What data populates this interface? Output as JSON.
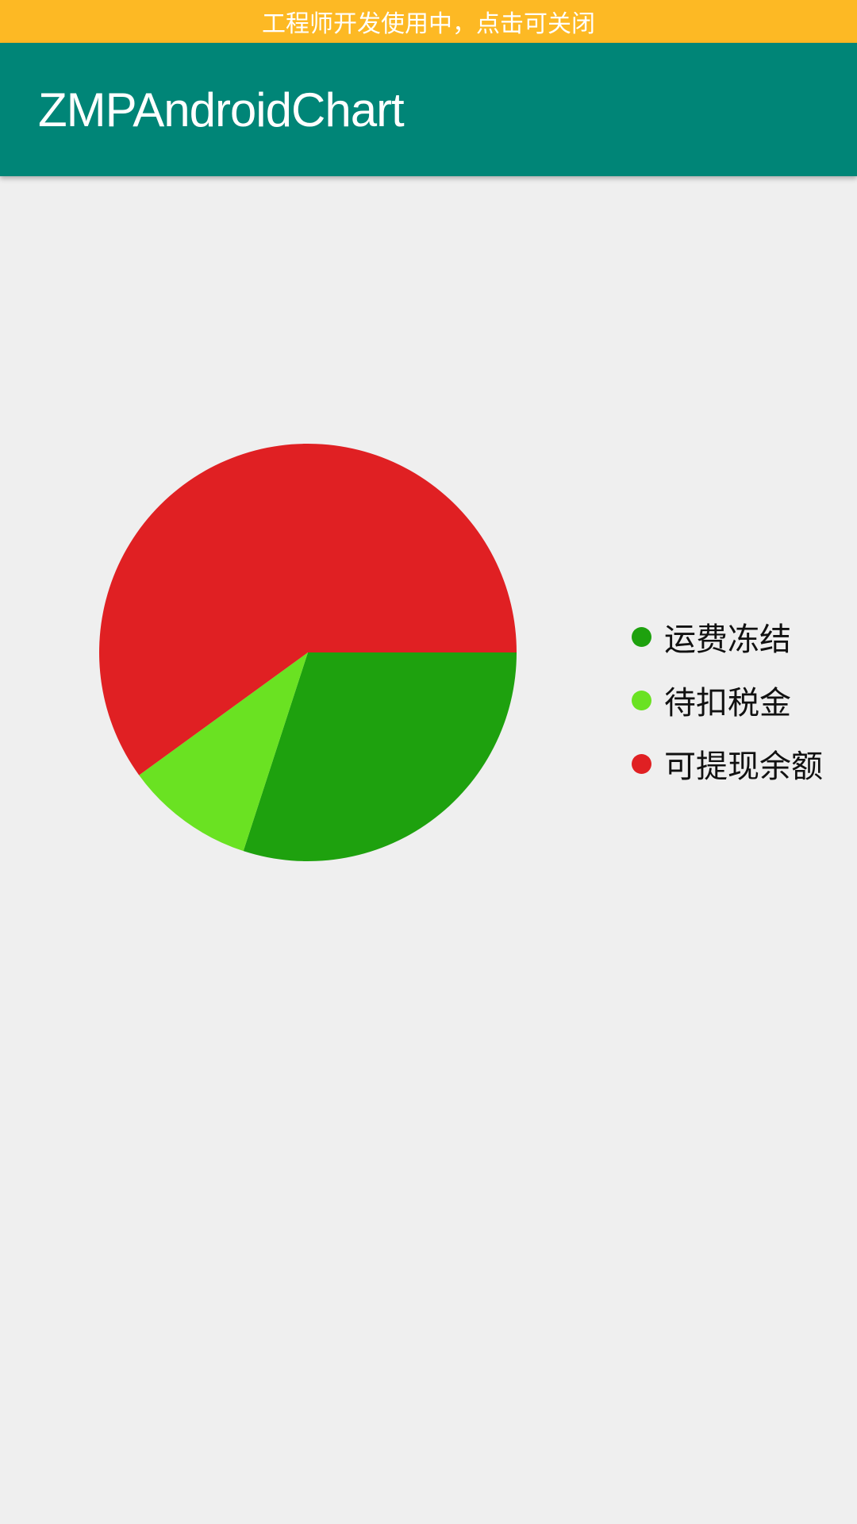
{
  "dev_banner": {
    "text": "工程师开发使用中，点击可关闭",
    "color": "#fdb924"
  },
  "app_bar": {
    "title": "ZMPAndroidChart",
    "color": "#008577"
  },
  "chart_data": {
    "type": "pie",
    "categories": [
      "运费冻结",
      "待扣税金",
      "可提现余额"
    ],
    "values": [
      30,
      10,
      60
    ],
    "colors": [
      "#1ea10e",
      "#6ae222",
      "#e02023"
    ],
    "start_angle_deg": 0,
    "legend_position": "right"
  },
  "legend": {
    "items": [
      {
        "label": "运费冻结",
        "color": "#1ea10e"
      },
      {
        "label": "待扣税金",
        "color": "#6ae222"
      },
      {
        "label": "可提现余额",
        "color": "#e02023"
      }
    ]
  }
}
